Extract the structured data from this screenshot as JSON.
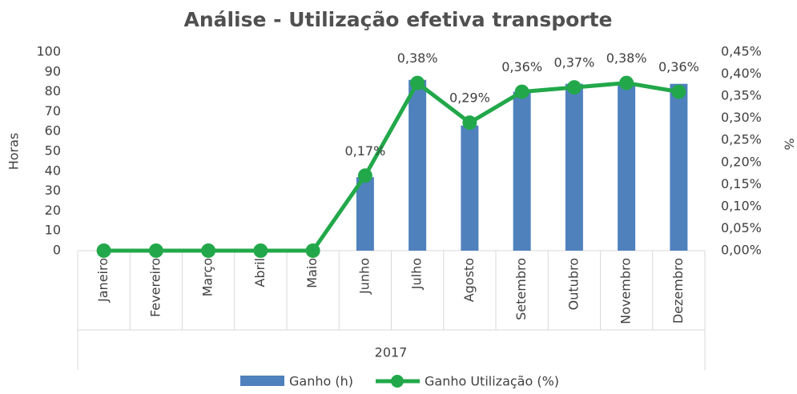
{
  "chart_data": {
    "type": "bar_line",
    "title": "Análise - Utilização efetiva transporte",
    "y_label": "Horas",
    "y2_label": "%",
    "x_group_label": "2017",
    "categories": [
      "Janeiro",
      "Fevereiro",
      "Março",
      "Abril",
      "Maio",
      "Junho",
      "Julho",
      "Agosto",
      "Setembro",
      "Outubro",
      "Novembro",
      "Dezembro"
    ],
    "series": [
      {
        "name": "Ganho (h)",
        "color": "#4f81bd",
        "type": "bar",
        "values": [
          0,
          0,
          0,
          0,
          0,
          37,
          86,
          63,
          80,
          84,
          84,
          84
        ]
      },
      {
        "name": "Ganho Utilização (%)",
        "color": "#22a84a",
        "type": "line",
        "axis": "y2",
        "values": [
          0,
          0,
          0,
          0,
          0,
          0.17,
          0.38,
          0.29,
          0.36,
          0.37,
          0.38,
          0.36
        ],
        "value_labels": [
          null,
          null,
          null,
          null,
          null,
          "0,17%",
          "0,38%",
          "0,29%",
          "0,36%",
          "0,37%",
          "0,38%",
          "0,36%"
        ]
      }
    ],
    "ylim": [
      0,
      100
    ],
    "yticks": [
      0,
      10,
      20,
      30,
      40,
      50,
      60,
      70,
      80,
      90,
      100
    ],
    "y2lim": [
      0,
      0.45
    ],
    "y2ticks": [
      {
        "value": 0,
        "label": "0,00%"
      },
      {
        "value": 0.05,
        "label": "0,05%"
      },
      {
        "value": 0.1,
        "label": "0,10%"
      },
      {
        "value": 0.15,
        "label": "0,15%"
      },
      {
        "value": 0.2,
        "label": "0,20%"
      },
      {
        "value": 0.25,
        "label": "0,25%"
      },
      {
        "value": 0.3,
        "label": "0,30%"
      },
      {
        "value": 0.35,
        "label": "0,35%"
      },
      {
        "value": 0.4,
        "label": "0,40%"
      },
      {
        "value": 0.45,
        "label": "0,45%"
      }
    ],
    "grid": false,
    "legend": "bottom"
  }
}
